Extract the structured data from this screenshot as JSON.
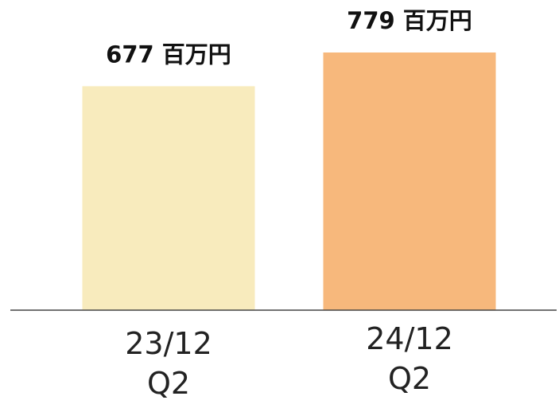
{
  "chart_data": {
    "type": "bar",
    "categories": [
      "23/12\nQ2",
      "24/12\nQ2"
    ],
    "values": [
      677,
      779
    ],
    "value_labels": [
      "677 百万円",
      "779 百万円"
    ],
    "colors": [
      "#f8ebbd",
      "#f7b87c"
    ]
  }
}
